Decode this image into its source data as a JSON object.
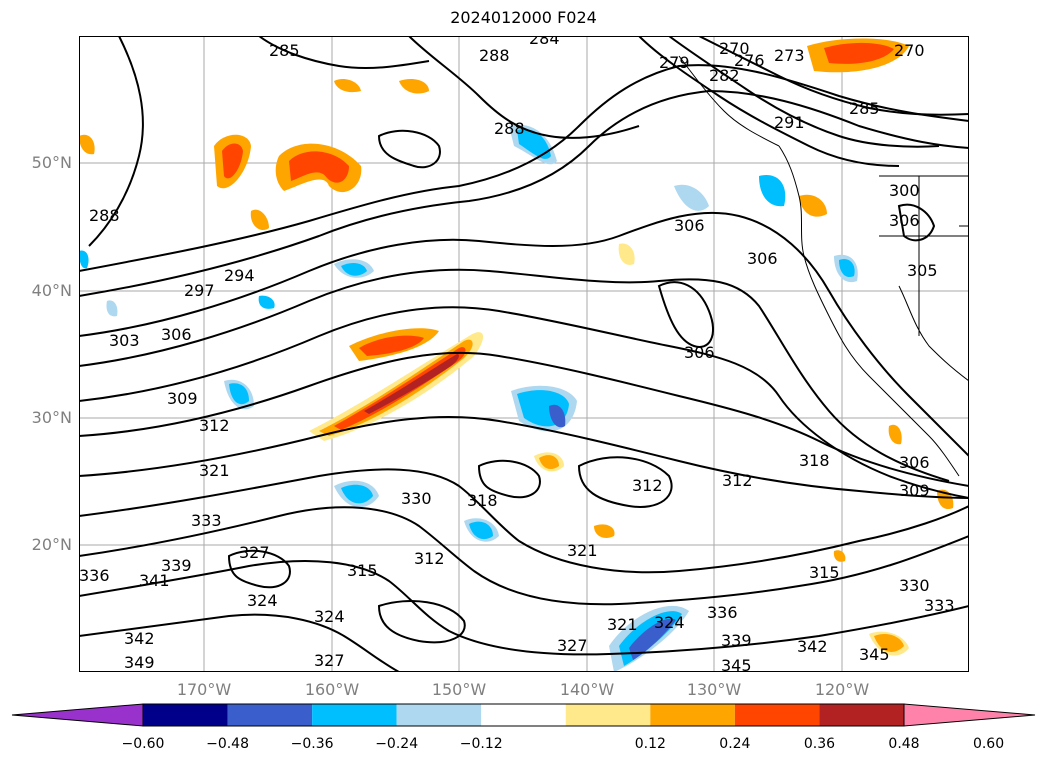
{
  "title": "2024012000 F024",
  "map": {
    "lat_labels": [
      "50°N",
      "40°N",
      "30°N",
      "20°N"
    ],
    "lon_labels": [
      "170°W",
      "160°W",
      "150°W",
      "140°W",
      "130°W",
      "120°W"
    ],
    "contour_labels": [
      "285",
      "288",
      "284",
      "270",
      "276",
      "279",
      "282",
      "273",
      "270",
      "285",
      "291",
      "288",
      "288",
      "306",
      "300",
      "306",
      "305",
      "306",
      "294",
      "297",
      "303",
      "306",
      "309",
      "306",
      "312",
      "318",
      "321",
      "312",
      "312",
      "306",
      "309",
      "330",
      "318",
      "333",
      "327",
      "315",
      "312",
      "321",
      "315",
      "330",
      "339",
      "341",
      "336",
      "333",
      "324",
      "324",
      "321",
      "324",
      "336",
      "327",
      "339",
      "342",
      "345",
      "342",
      "345",
      "349",
      "327"
    ],
    "fill_colors": {
      "orange_light": "#ffe98a",
      "orange": "#ffa500",
      "red_orange": "#ff4500",
      "dark_red": "#b22222",
      "light_blue": "#add8f0",
      "blue": "#00bfff",
      "mid_blue": "#3a5fcd"
    }
  },
  "colorbar": {
    "ticks": [
      "−0.60",
      "−0.48",
      "−0.36",
      "−0.24",
      "−0.12",
      "0.12",
      "0.24",
      "0.36",
      "0.48",
      "0.60"
    ],
    "colors": [
      "#9932cc",
      "#00008b",
      "#3a5fcd",
      "#00bfff",
      "#add8f0",
      "#ffffff",
      "#ffe98a",
      "#ffa500",
      "#ff4500",
      "#b22222",
      "#ff82ab"
    ]
  }
}
